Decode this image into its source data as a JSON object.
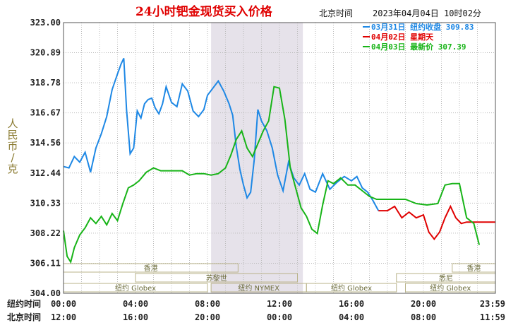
{
  "chart_data": {
    "type": "line",
    "title": "24小时钯金现货买入价格",
    "time_zone_label": "北京时间",
    "timestamp": "2023年04月04日 10时02分",
    "ylabel_chars": [
      "人",
      "民",
      "币",
      "/",
      "克"
    ],
    "ylim": [
      304.0,
      323.0
    ],
    "yticks": [
      "323.00",
      "320.89",
      "318.78",
      "316.67",
      "314.56",
      "312.44",
      "310.33",
      "308.22",
      "306.11",
      "304.00"
    ],
    "x_row_labels": [
      "纽约时间",
      "北京时间"
    ],
    "x_ny_ticks": [
      "00:00",
      "04:00",
      "08:00",
      "12:00",
      "16:00",
      "20:00",
      "23:59"
    ],
    "x_bj_ticks": [
      "12:00",
      "16:00",
      "20:00",
      "00:00",
      "04:00",
      "08:00",
      "11:59"
    ],
    "grid": true,
    "legend_position": "top-right",
    "legend": [
      {
        "text": "03月31日  纽约收盘 309.83",
        "color": "#1e88e5"
      },
      {
        "text": "04月02日     星期天",
        "color": "#e00000"
      },
      {
        "text": "04月03日   最新价 307.39",
        "color": "#18b418"
      }
    ],
    "market_bands": [
      {
        "name": "香港",
        "start": 0.0,
        "end": 9.7,
        "row": 0
      },
      {
        "name": "苏黎世",
        "start": 4.0,
        "end": 13.0,
        "row": 1
      },
      {
        "name": "纽约 Globex",
        "start": 0.0,
        "end": 8.0,
        "row": 2
      },
      {
        "name": "纽约 NYMEX",
        "start": 8.2,
        "end": 13.5,
        "row": 2
      },
      {
        "name": "纽约 Globex",
        "start": 13.5,
        "end": 18.5,
        "row": 2
      },
      {
        "name": "悉尼",
        "start": 18.5,
        "end": 24.0,
        "row": 1
      },
      {
        "name": "香港",
        "start": 21.6,
        "end": 24.0,
        "row": 0
      },
      {
        "name": "纽约 Globex",
        "start": 19.0,
        "end": 24.0,
        "row": 2
      }
    ],
    "highlight_hours": [
      8.2,
      13.3
    ],
    "series": [
      {
        "name": "03月31日",
        "color": "#1e88e5",
        "points": [
          [
            0.0,
            312.9
          ],
          [
            0.3,
            312.8
          ],
          [
            0.6,
            313.6
          ],
          [
            0.9,
            313.2
          ],
          [
            1.2,
            313.9
          ],
          [
            1.5,
            312.5
          ],
          [
            1.8,
            314.2
          ],
          [
            2.1,
            315.2
          ],
          [
            2.4,
            316.4
          ],
          [
            2.7,
            318.3
          ],
          [
            3.0,
            319.4
          ],
          [
            3.2,
            320.1
          ],
          [
            3.35,
            320.5
          ],
          [
            3.5,
            316.9
          ],
          [
            3.7,
            313.8
          ],
          [
            3.9,
            314.2
          ],
          [
            4.1,
            316.8
          ],
          [
            4.3,
            316.3
          ],
          [
            4.5,
            317.3
          ],
          [
            4.7,
            317.6
          ],
          [
            4.9,
            317.7
          ],
          [
            5.1,
            317.0
          ],
          [
            5.3,
            316.6
          ],
          [
            5.5,
            317.3
          ],
          [
            5.7,
            318.5
          ],
          [
            6.0,
            317.4
          ],
          [
            6.3,
            317.1
          ],
          [
            6.6,
            318.7
          ],
          [
            6.9,
            318.2
          ],
          [
            7.2,
            316.8
          ],
          [
            7.5,
            316.4
          ],
          [
            7.8,
            316.9
          ],
          [
            8.0,
            317.9
          ],
          [
            8.3,
            318.4
          ],
          [
            8.6,
            318.9
          ],
          [
            8.9,
            318.2
          ],
          [
            9.2,
            317.3
          ],
          [
            9.4,
            316.5
          ],
          [
            9.6,
            314.3
          ],
          [
            9.8,
            312.7
          ],
          [
            10.0,
            311.6
          ],
          [
            10.2,
            310.7
          ],
          [
            10.4,
            311.1
          ],
          [
            10.6,
            313.4
          ],
          [
            10.8,
            316.9
          ],
          [
            11.0,
            316.1
          ],
          [
            11.3,
            315.4
          ],
          [
            11.6,
            314.2
          ],
          [
            11.9,
            312.3
          ],
          [
            12.2,
            311.2
          ],
          [
            12.5,
            313.2
          ],
          [
            12.8,
            312.1
          ],
          [
            13.1,
            311.6
          ],
          [
            13.4,
            312.4
          ],
          [
            13.7,
            311.3
          ],
          [
            14.0,
            311.1
          ],
          [
            14.4,
            312.4
          ],
          [
            14.8,
            311.3
          ],
          [
            15.2,
            311.8
          ],
          [
            15.6,
            312.2
          ],
          [
            16.0,
            311.9
          ],
          [
            16.3,
            312.2
          ],
          [
            16.6,
            311.4
          ],
          [
            16.9,
            311.1
          ],
          [
            17.2,
            310.5
          ],
          [
            17.5,
            309.8
          ]
        ]
      },
      {
        "name": "04月02日",
        "color": "#e00000",
        "points": [
          [
            17.5,
            309.8
          ],
          [
            18.0,
            309.8
          ],
          [
            18.4,
            310.1
          ],
          [
            18.8,
            309.3
          ],
          [
            19.2,
            309.7
          ],
          [
            19.6,
            309.3
          ],
          [
            20.0,
            309.5
          ],
          [
            20.3,
            308.3
          ],
          [
            20.6,
            307.8
          ],
          [
            20.9,
            308.3
          ],
          [
            21.2,
            309.3
          ],
          [
            21.5,
            310.1
          ],
          [
            21.8,
            309.3
          ],
          [
            22.1,
            308.9
          ],
          [
            22.4,
            309.0
          ],
          [
            22.8,
            309.0
          ],
          [
            23.4,
            309.0
          ],
          [
            24.0,
            309.0
          ]
        ]
      },
      {
        "name": "04月03日",
        "color": "#18b418",
        "points": [
          [
            0.0,
            308.4
          ],
          [
            0.2,
            306.6
          ],
          [
            0.4,
            306.2
          ],
          [
            0.6,
            307.2
          ],
          [
            0.9,
            308.1
          ],
          [
            1.2,
            308.6
          ],
          [
            1.5,
            309.3
          ],
          [
            1.8,
            308.9
          ],
          [
            2.1,
            309.4
          ],
          [
            2.4,
            308.8
          ],
          [
            2.7,
            309.6
          ],
          [
            3.0,
            309.1
          ],
          [
            3.3,
            310.3
          ],
          [
            3.6,
            311.4
          ],
          [
            3.9,
            311.6
          ],
          [
            4.2,
            311.9
          ],
          [
            4.6,
            312.5
          ],
          [
            5.0,
            312.8
          ],
          [
            5.4,
            312.6
          ],
          [
            5.8,
            312.6
          ],
          [
            6.2,
            312.6
          ],
          [
            6.6,
            312.6
          ],
          [
            7.0,
            312.3
          ],
          [
            7.4,
            312.4
          ],
          [
            7.8,
            312.4
          ],
          [
            8.2,
            312.3
          ],
          [
            8.6,
            312.4
          ],
          [
            9.0,
            312.8
          ],
          [
            9.3,
            313.7
          ],
          [
            9.6,
            314.8
          ],
          [
            9.9,
            315.4
          ],
          [
            10.2,
            314.2
          ],
          [
            10.5,
            313.6
          ],
          [
            10.8,
            314.5
          ],
          [
            11.1,
            315.4
          ],
          [
            11.4,
            316.1
          ],
          [
            11.7,
            318.5
          ],
          [
            12.0,
            318.4
          ],
          [
            12.3,
            316.2
          ],
          [
            12.6,
            312.8
          ],
          [
            12.9,
            311.4
          ],
          [
            13.2,
            310.0
          ],
          [
            13.5,
            309.4
          ],
          [
            13.8,
            308.5
          ],
          [
            14.1,
            308.2
          ],
          [
            14.4,
            310.2
          ],
          [
            14.7,
            311.9
          ],
          [
            15.0,
            311.7
          ],
          [
            15.4,
            312.1
          ],
          [
            15.8,
            311.6
          ],
          [
            16.2,
            311.6
          ],
          [
            16.6,
            311.2
          ],
          [
            17.0,
            310.8
          ],
          [
            17.4,
            310.6
          ],
          [
            17.8,
            310.6
          ],
          [
            18.4,
            310.6
          ],
          [
            19.0,
            310.6
          ],
          [
            19.6,
            310.3
          ],
          [
            20.2,
            310.2
          ],
          [
            20.8,
            310.3
          ],
          [
            21.2,
            311.6
          ],
          [
            21.6,
            311.7
          ],
          [
            22.0,
            311.7
          ],
          [
            22.4,
            309.3
          ],
          [
            22.8,
            308.9
          ],
          [
            23.0,
            307.9
          ],
          [
            23.1,
            307.4
          ]
        ]
      }
    ]
  }
}
